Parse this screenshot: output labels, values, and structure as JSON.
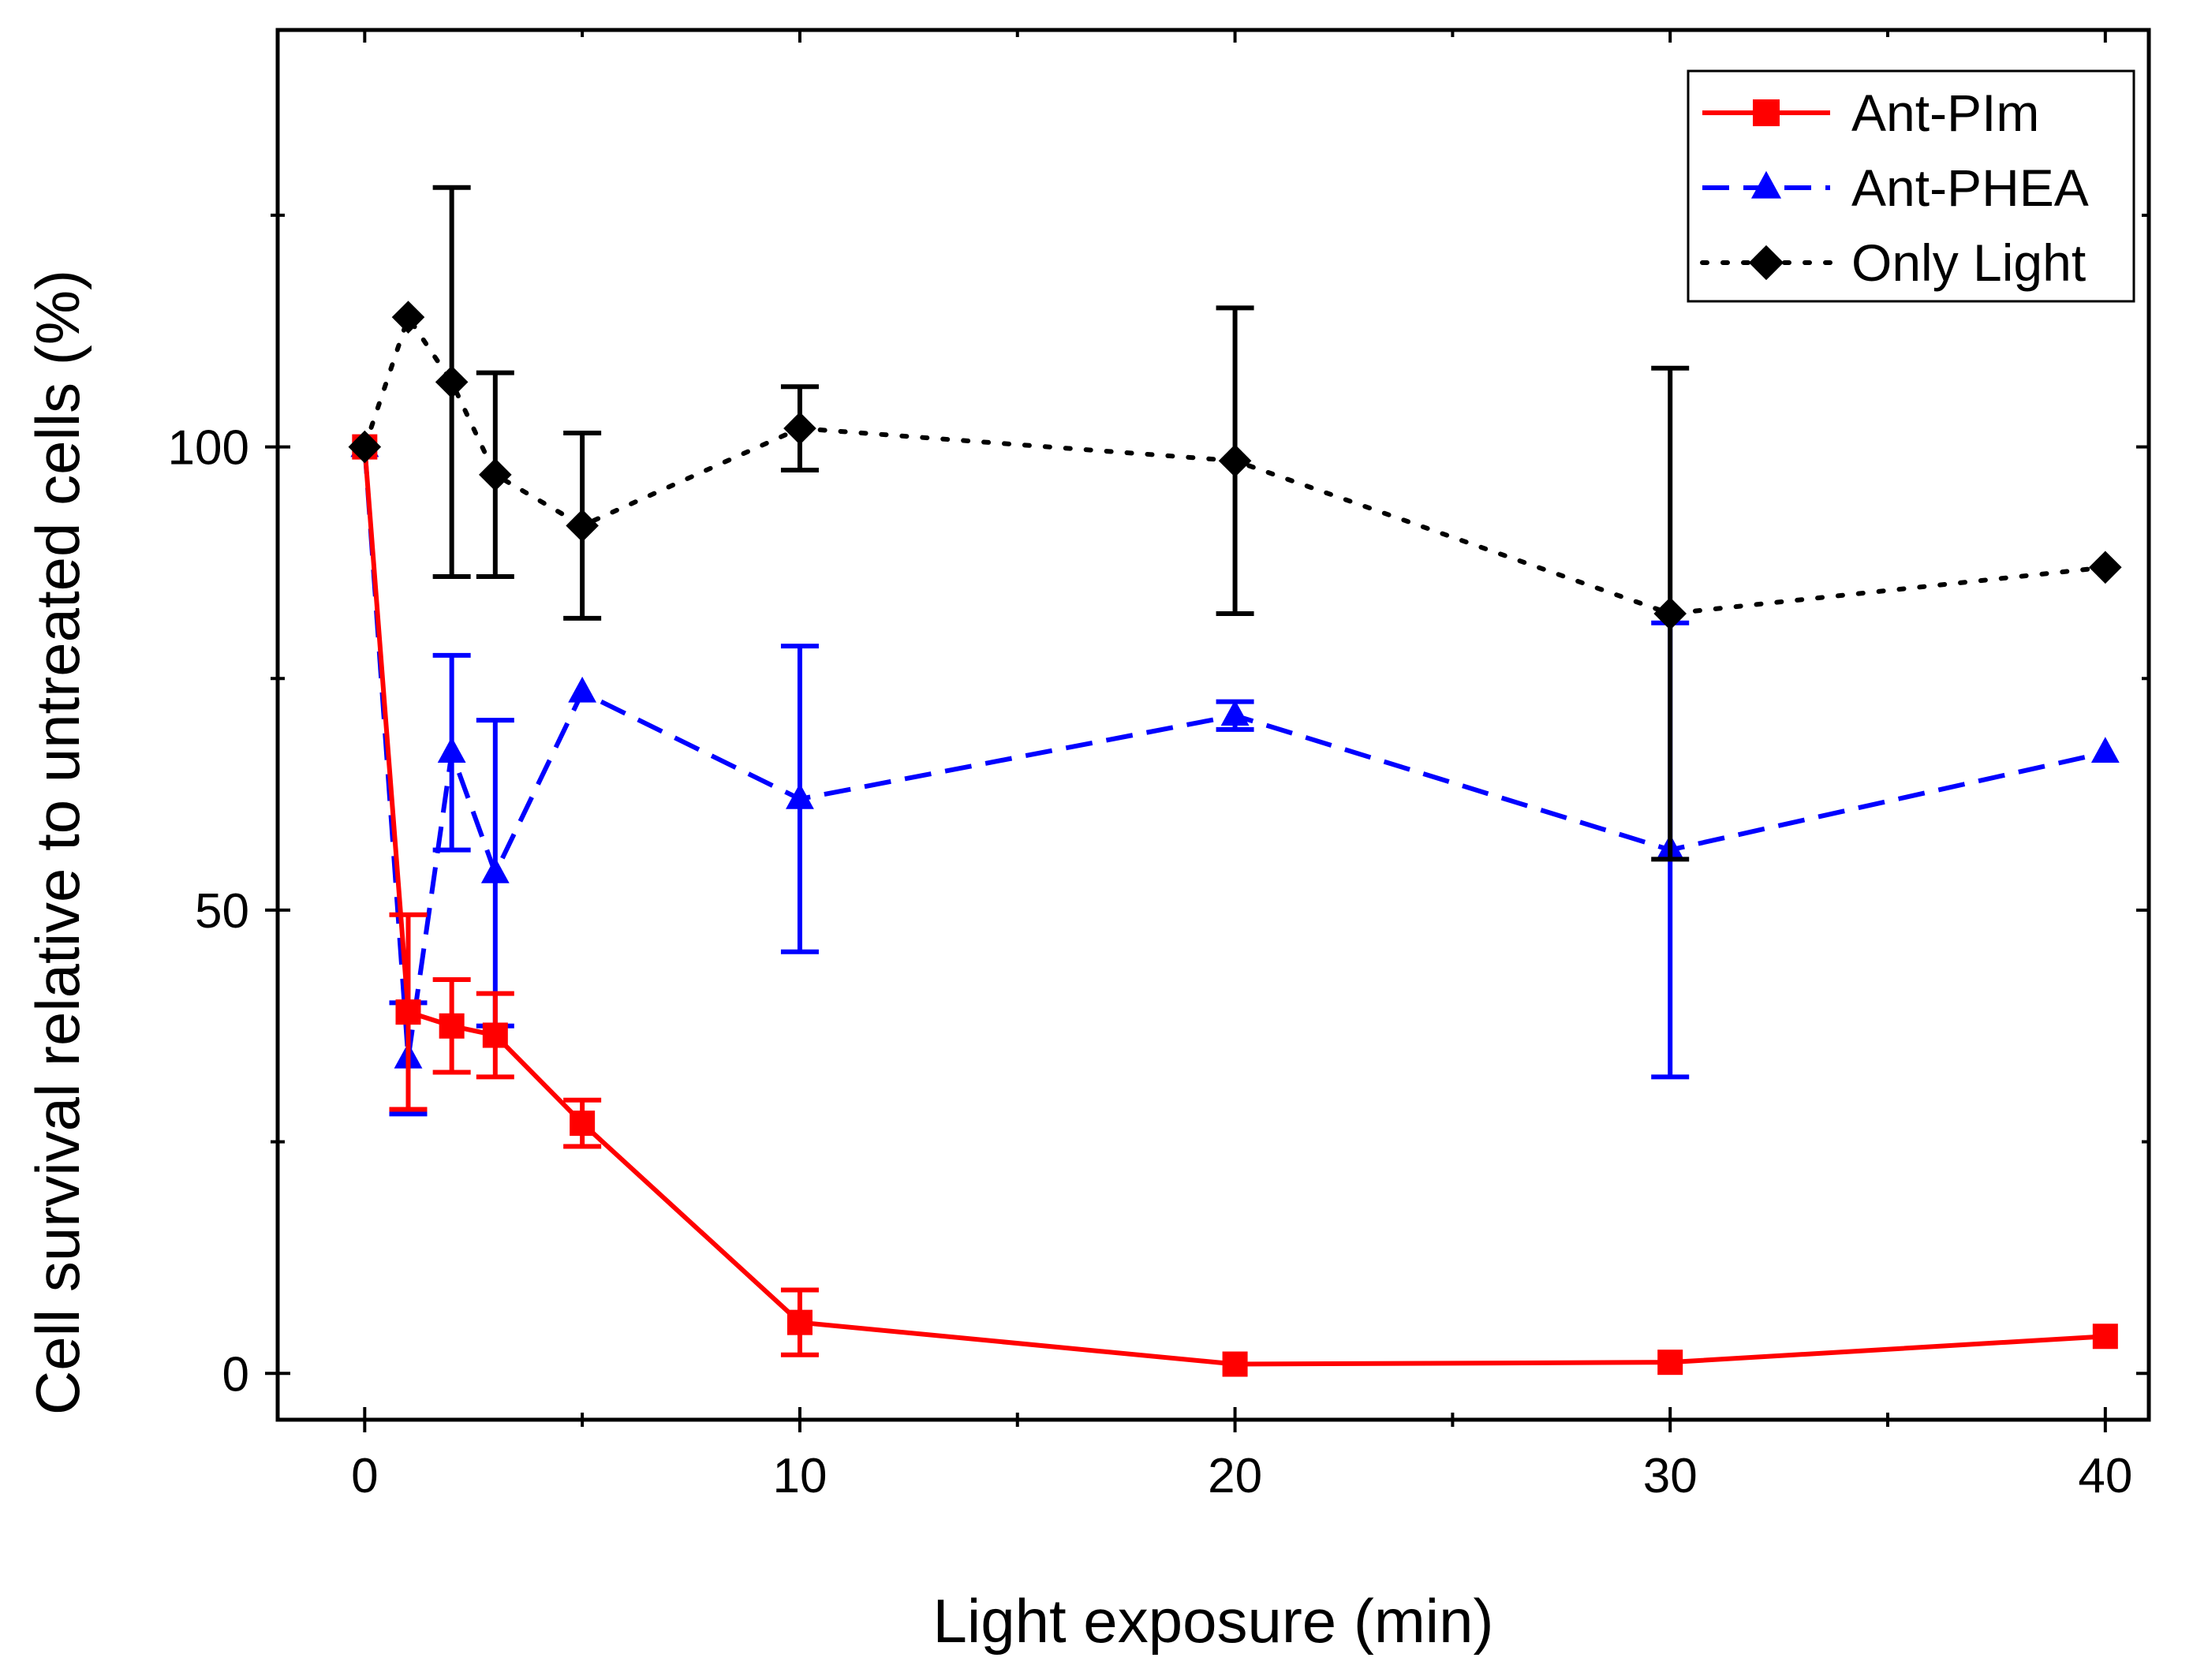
{
  "chart_data": {
    "type": "line",
    "title": "",
    "xlabel": "Light exposure (min)",
    "ylabel": "Cell survival relative to untreated cells (%)",
    "xlim": [
      -2,
      41
    ],
    "ylim": [
      -5,
      145
    ],
    "xticks": [
      0,
      10,
      20,
      30,
      40
    ],
    "xtick_labels": [
      "0",
      "10",
      "20",
      "30",
      "40"
    ],
    "xminor": [
      5,
      15,
      25,
      35
    ],
    "yticks": [
      0,
      50,
      100
    ],
    "ytick_labels": [
      "0",
      "50",
      "100"
    ],
    "yminor": [
      25,
      75,
      125
    ],
    "grid": false,
    "legend_position": "top-right",
    "series": [
      {
        "name": "Ant-PIm",
        "color": "#ff0000",
        "marker": "square",
        "line": "solid",
        "x": [
          0,
          1,
          2,
          3,
          5,
          10,
          20,
          30,
          40
        ],
        "y": [
          100,
          39,
          37.5,
          36.5,
          27,
          5.5,
          1,
          1.2,
          4
        ],
        "err": [
          0,
          10.5,
          5,
          4.5,
          2.5,
          3.5,
          0,
          0,
          0
        ]
      },
      {
        "name": "Ant-PHEA",
        "color": "#0000ff",
        "marker": "triangle",
        "line": "dashed",
        "x": [
          0,
          1,
          2,
          3,
          5,
          10,
          20,
          30,
          40
        ],
        "y": [
          100,
          34,
          67,
          54,
          73.5,
          62,
          71,
          56.5,
          67
        ],
        "err": [
          0,
          6,
          10.5,
          16.5,
          0,
          16.5,
          1.5,
          24.5,
          0
        ]
      },
      {
        "name": "Only Light",
        "color": "#000000",
        "marker": "diamond",
        "line": "dotted",
        "x": [
          0,
          1,
          2,
          3,
          5,
          10,
          20,
          30,
          40
        ],
        "y": [
          100,
          114,
          107,
          97,
          91.5,
          102,
          98.5,
          82,
          87
        ],
        "err": [
          0,
          0,
          21,
          11,
          10,
          4.5,
          16.5,
          26.5,
          0
        ]
      }
    ]
  }
}
